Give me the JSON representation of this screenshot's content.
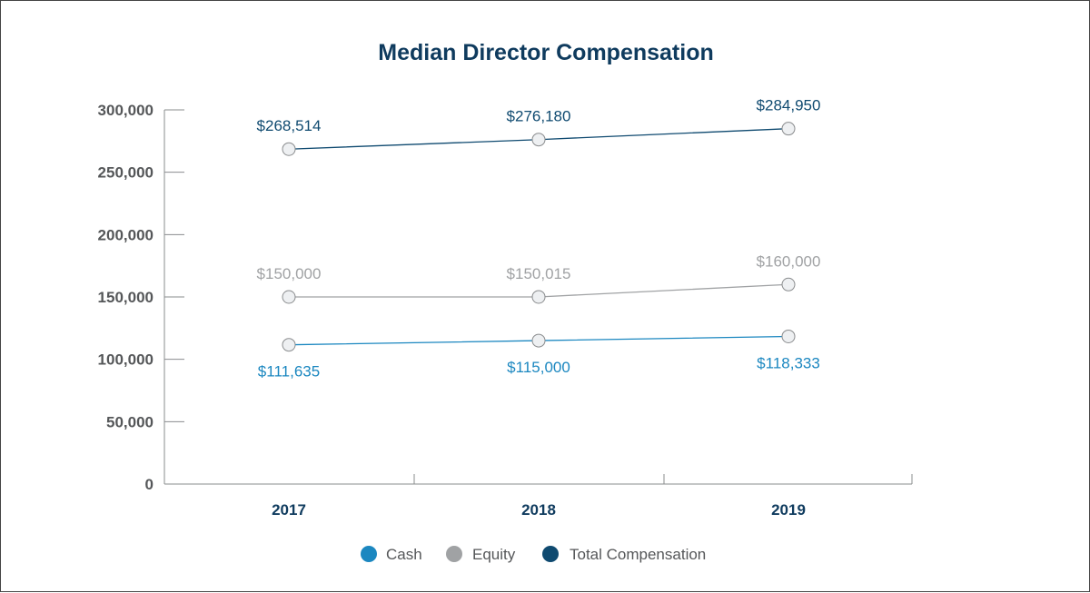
{
  "chart_data": {
    "type": "line",
    "title": "Median Director Compensation",
    "xlabel": "",
    "ylabel": "",
    "categories": [
      "2017",
      "2018",
      "2019"
    ],
    "ylim": [
      0,
      300000
    ],
    "yticks": [
      0,
      50000,
      100000,
      150000,
      200000,
      250000,
      300000
    ],
    "ytick_labels": [
      "0",
      "50,000",
      "100,000",
      "150,000",
      "200,000",
      "250,000",
      "300,000"
    ],
    "grid": false,
    "legend_position": "bottom",
    "series": [
      {
        "name": "Cash",
        "values": [
          111635,
          115000,
          118333
        ],
        "labels": [
          "$111,635",
          "$115,000",
          "$118,333"
        ],
        "color": "#1b87c0",
        "label_position": "below"
      },
      {
        "name": "Equity",
        "values": [
          150000,
          150015,
          160000
        ],
        "labels": [
          "$150,000",
          "$150,015",
          "$160,000"
        ],
        "color": "#a0a2a4",
        "label_position": "above"
      },
      {
        "name": "Total Compensation",
        "values": [
          268514,
          276180,
          284950
        ],
        "labels": [
          "$268,514",
          "$276,180",
          "$284,950"
        ],
        "color": "#0f4a70",
        "label_position": "above"
      }
    ]
  },
  "colors": {
    "title": "#0f3b5e",
    "axis_text": "#555759",
    "axis_line": "#8a8c8e",
    "marker_fill": "#eef0f2",
    "marker_stroke": "#8a8c8e"
  }
}
